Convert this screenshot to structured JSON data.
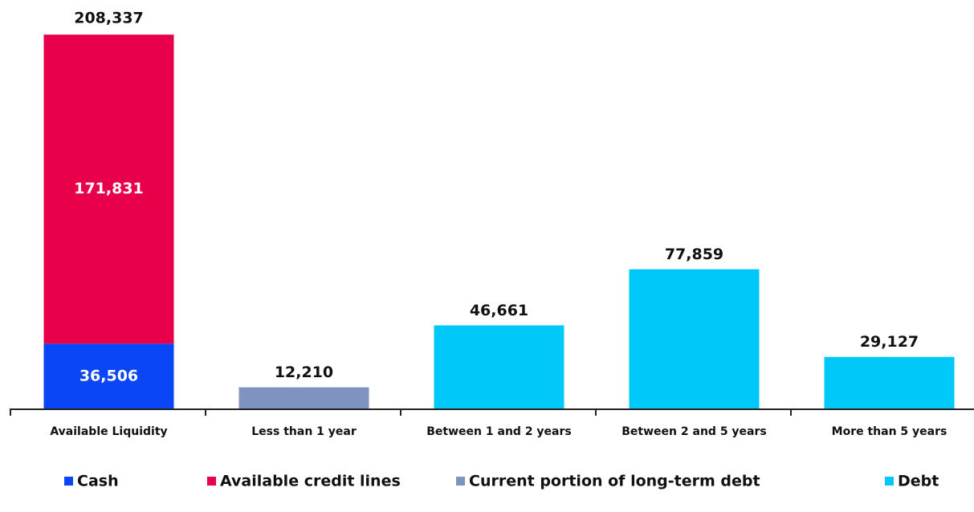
{
  "chart_data": {
    "type": "stacked_bar",
    "categories": [
      "Available Liquidity",
      "Less than 1 year",
      "Between 1 and 2 years",
      "Between 2 and 5 years",
      "More than 5 years"
    ],
    "series": [
      {
        "name": "Cash",
        "color": "#0a46f5",
        "values": [
          36506,
          null,
          null,
          null,
          null
        ],
        "value_labels": [
          "36,506",
          null,
          null,
          null,
          null
        ]
      },
      {
        "name": "Available credit lines",
        "color": "#e8004a",
        "values": [
          171831,
          null,
          null,
          null,
          null
        ],
        "value_labels": [
          "171,831",
          null,
          null,
          null,
          null
        ]
      },
      {
        "name": "Current portion of long-term debt",
        "color": "#7f93c0",
        "values": [
          null,
          12210,
          null,
          null,
          null
        ],
        "value_labels": [
          null,
          "12,210",
          null,
          null,
          null
        ]
      },
      {
        "name": "Debt",
        "color": "#00c8f8",
        "values": [
          null,
          null,
          46661,
          77859,
          29127
        ],
        "value_labels": [
          null,
          null,
          "46,661",
          "77,859",
          "29,127"
        ]
      }
    ],
    "annotations": [
      "208,337"
    ],
    "ylim": [
      0,
      220000
    ],
    "legend": "bottom"
  }
}
